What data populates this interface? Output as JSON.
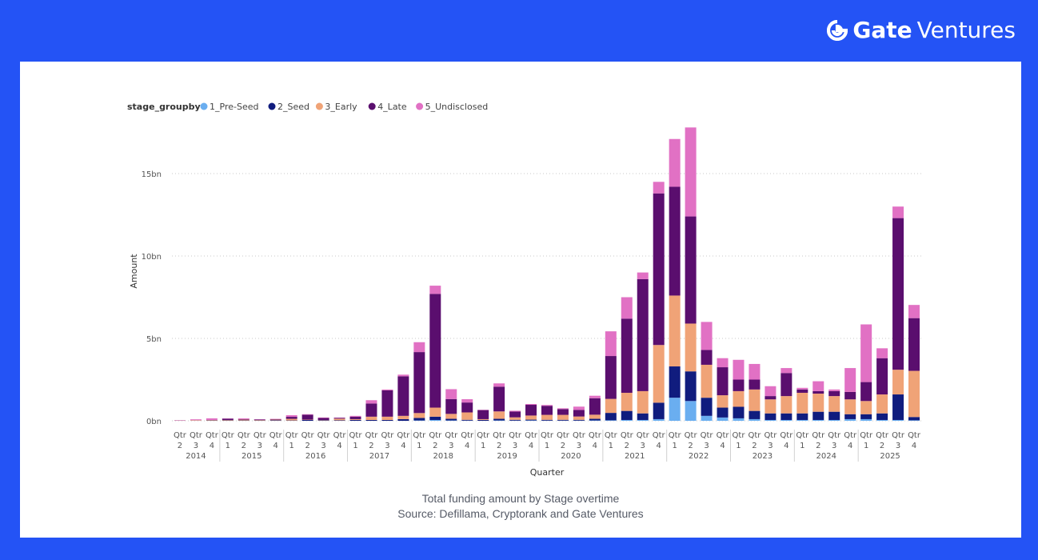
{
  "brand": {
    "name": "Gate",
    "suffix": "Ventures"
  },
  "caption": {
    "line1": "Total funding amount by Stage overtime",
    "line2": "Source: Defillama, Cryptorank and Gate Ventures"
  },
  "chart_data": {
    "type": "bar",
    "stacked": true,
    "legend": {
      "title": "stage_groupby",
      "placement": "top-left"
    },
    "xlabel": "Quarter",
    "ylabel": "Amount",
    "ylim": [
      0,
      18
    ],
    "y_unit": "bn",
    "yticks": [
      {
        "value": 0,
        "label": "0bn"
      },
      {
        "value": 5,
        "label": "5bn"
      },
      {
        "value": 10,
        "label": "10bn"
      },
      {
        "value": 15,
        "label": "15bn"
      }
    ],
    "grid": true,
    "years": [
      "2014",
      "2015",
      "2016",
      "2017",
      "2018",
      "2019",
      "2020",
      "2021",
      "2022",
      "2023",
      "2024",
      "2025"
    ],
    "categories": [
      {
        "year": "2014",
        "q": "2"
      },
      {
        "year": "2014",
        "q": "3"
      },
      {
        "year": "2014",
        "q": "4"
      },
      {
        "year": "2015",
        "q": "1"
      },
      {
        "year": "2015",
        "q": "2"
      },
      {
        "year": "2015",
        "q": "3"
      },
      {
        "year": "2015",
        "q": "4"
      },
      {
        "year": "2016",
        "q": "1"
      },
      {
        "year": "2016",
        "q": "2"
      },
      {
        "year": "2016",
        "q": "3"
      },
      {
        "year": "2016",
        "q": "4"
      },
      {
        "year": "2017",
        "q": "1"
      },
      {
        "year": "2017",
        "q": "2"
      },
      {
        "year": "2017",
        "q": "3"
      },
      {
        "year": "2017",
        "q": "4"
      },
      {
        "year": "2018",
        "q": "1"
      },
      {
        "year": "2018",
        "q": "2"
      },
      {
        "year": "2018",
        "q": "3"
      },
      {
        "year": "2018",
        "q": "4"
      },
      {
        "year": "2019",
        "q": "1"
      },
      {
        "year": "2019",
        "q": "2"
      },
      {
        "year": "2019",
        "q": "3"
      },
      {
        "year": "2019",
        "q": "4"
      },
      {
        "year": "2020",
        "q": "1"
      },
      {
        "year": "2020",
        "q": "2"
      },
      {
        "year": "2020",
        "q": "3"
      },
      {
        "year": "2020",
        "q": "4"
      },
      {
        "year": "2021",
        "q": "1"
      },
      {
        "year": "2021",
        "q": "2"
      },
      {
        "year": "2021",
        "q": "3"
      },
      {
        "year": "2021",
        "q": "4"
      },
      {
        "year": "2022",
        "q": "1"
      },
      {
        "year": "2022",
        "q": "2"
      },
      {
        "year": "2022",
        "q": "3"
      },
      {
        "year": "2022",
        "q": "4"
      },
      {
        "year": "2023",
        "q": "1"
      },
      {
        "year": "2023",
        "q": "2"
      },
      {
        "year": "2023",
        "q": "3"
      },
      {
        "year": "2023",
        "q": "4"
      },
      {
        "year": "2024",
        "q": "1"
      },
      {
        "year": "2024",
        "q": "2"
      },
      {
        "year": "2024",
        "q": "3"
      },
      {
        "year": "2024",
        "q": "4"
      },
      {
        "year": "2025",
        "q": "1"
      },
      {
        "year": "2025",
        "q": "2"
      },
      {
        "year": "2025",
        "q": "3"
      },
      {
        "year": "2025",
        "q": "4"
      }
    ],
    "tick_prefix": "Qtr",
    "series": [
      {
        "name": "1_Pre-Seed",
        "color": "#6aaef0",
        "values": [
          0,
          0,
          0,
          0,
          0,
          0,
          0,
          0,
          0,
          0,
          0,
          0,
          0,
          0,
          0,
          0.02,
          0.05,
          0.02,
          0.01,
          0,
          0.02,
          0.01,
          0.02,
          0.01,
          0.01,
          0.01,
          0.02,
          0.03,
          0.05,
          0.05,
          0.1,
          1.4,
          1.2,
          0.3,
          0.2,
          0.15,
          0.1,
          0.05,
          0.05,
          0.05,
          0.05,
          0.05,
          0.1,
          0.1,
          0.05,
          0.05,
          0.03
        ]
      },
      {
        "name": "2_Seed",
        "color": "#101c7e",
        "values": [
          0.01,
          0.01,
          0.02,
          0.02,
          0.02,
          0.02,
          0.03,
          0.02,
          0.05,
          0.03,
          0.03,
          0.05,
          0.05,
          0.05,
          0.1,
          0.15,
          0.2,
          0.1,
          0.05,
          0.05,
          0.1,
          0.05,
          0.05,
          0.05,
          0.05,
          0.05,
          0.1,
          0.45,
          0.55,
          0.4,
          1.0,
          1.9,
          1.8,
          1.1,
          0.6,
          0.7,
          0.5,
          0.4,
          0.4,
          0.4,
          0.5,
          0.5,
          0.3,
          0.3,
          0.4,
          1.55,
          0.2
        ]
      },
      {
        "name": "3_Early",
        "color": "#f0a377",
        "values": [
          0.01,
          0.03,
          0.03,
          0.03,
          0.05,
          0.03,
          0.04,
          0.1,
          0.02,
          0.02,
          0.1,
          0.05,
          0.2,
          0.2,
          0.2,
          0.3,
          0.55,
          0.3,
          0.45,
          0.05,
          0.45,
          0.15,
          0.25,
          0.3,
          0.3,
          0.2,
          0.25,
          0.85,
          1.1,
          1.35,
          3.5,
          4.3,
          2.9,
          2.0,
          0.75,
          0.95,
          1.3,
          0.85,
          1.05,
          1.25,
          1.1,
          0.95,
          0.9,
          0.8,
          1.15,
          1.5,
          2.8
        ]
      },
      {
        "name": "4_Late",
        "color": "#5a0e6e",
        "values": [
          0,
          0,
          0,
          0.08,
          0.03,
          0.03,
          0.03,
          0.12,
          0.3,
          0.12,
          0.05,
          0.15,
          0.8,
          1.6,
          2.4,
          3.7,
          6.9,
          0.9,
          0.6,
          0.55,
          1.5,
          0.35,
          0.65,
          0.55,
          0.35,
          0.4,
          1.0,
          2.6,
          4.5,
          6.8,
          9.2,
          6.6,
          6.5,
          0.9,
          1.7,
          0.7,
          0.6,
          0.2,
          1.4,
          0.2,
          0.15,
          0.3,
          0.45,
          1.15,
          2.2,
          9.2,
          3.2
        ]
      },
      {
        "name": "5_Undisclosed",
        "color": "#e171c4",
        "values": [
          0.02,
          0.05,
          0.1,
          0.02,
          0.05,
          0.02,
          0.02,
          0.1,
          0.03,
          0.03,
          0.02,
          0.05,
          0.2,
          0.05,
          0.1,
          0.6,
          0.5,
          0.6,
          0.2,
          0.02,
          0.2,
          0.05,
          0.05,
          0.05,
          0.05,
          0.2,
          0.15,
          1.5,
          1.3,
          0.4,
          0.7,
          2.9,
          5.4,
          1.7,
          0.55,
          1.2,
          0.95,
          0.6,
          0.3,
          0.1,
          0.6,
          0.1,
          1.45,
          3.5,
          0.6,
          0.7,
          0.8
        ]
      }
    ]
  }
}
